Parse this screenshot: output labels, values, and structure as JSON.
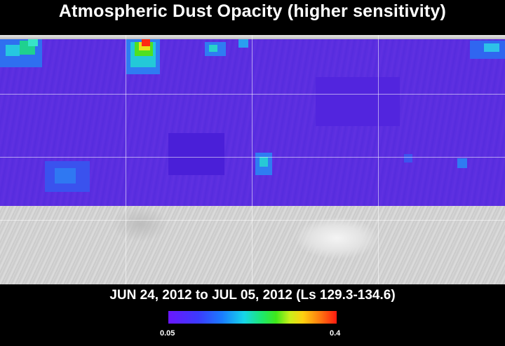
{
  "title": "Atmospheric Dust Opacity (higher sensitivity)",
  "date_range": "JUN 24, 2012 to JUL 05, 2012 (Ls 129.3-134.6)",
  "colorbar": {
    "min_label": "0.05",
    "max_label": "0.4"
  },
  "colors": {
    "background": "#000000",
    "low": "#6a17ff",
    "high": "#ff1a10"
  }
}
